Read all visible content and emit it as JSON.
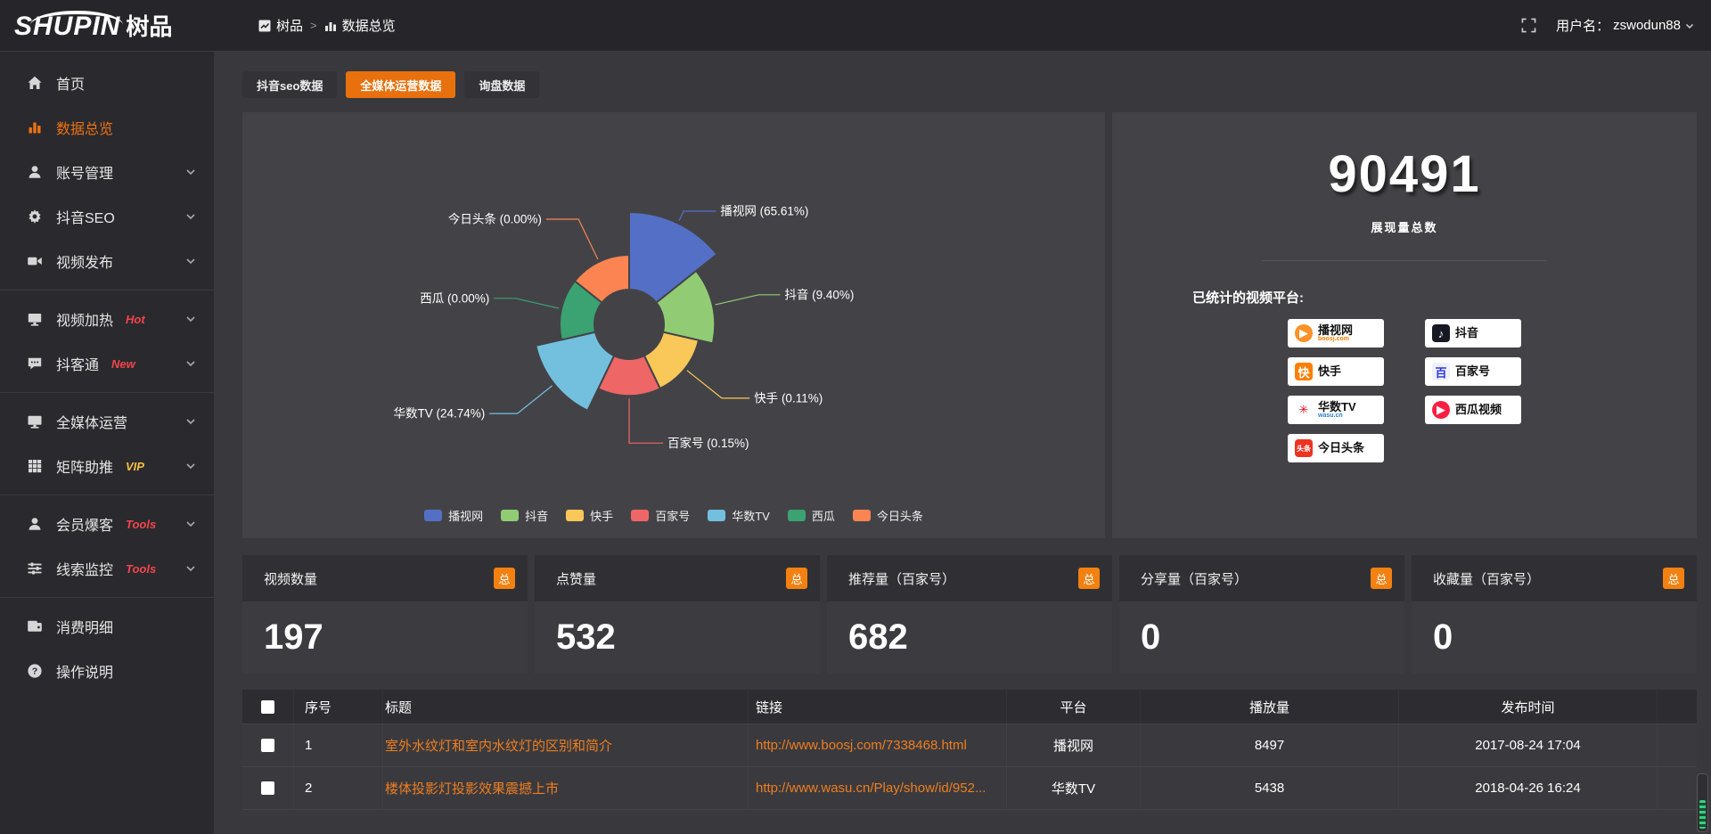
{
  "colors": {
    "accent": "#e8710d",
    "badge_total_bg": "#f28111",
    "hot_badge": "#f4444b",
    "vip_badge": "#f6c043",
    "link_orange": "#ee7e20",
    "panel_bg": "#434347",
    "palette": [
      "#5470c6",
      "#91cc75",
      "#fac858",
      "#ee6666",
      "#73c0de",
      "#3ba272",
      "#fc8452"
    ]
  },
  "header": {
    "logo_main": "SHUPIN",
    "logo_sub": "树品",
    "breadcrumb": [
      {
        "label": "树品",
        "icon": "dashboard-icon"
      },
      {
        "label": "数据总览",
        "icon": "bars-icon"
      }
    ],
    "breadcrumb_separator": ">",
    "user_label": "用户名：",
    "username": "zswodun88"
  },
  "sidebar": {
    "items": [
      {
        "key": "home",
        "icon": "home",
        "label": "首页"
      },
      {
        "key": "data-overview",
        "icon": "chart",
        "label": "数据总览",
        "active": true
      },
      {
        "key": "account-manage",
        "icon": "user",
        "label": "账号管理",
        "chevron": true
      },
      {
        "key": "douyin-seo",
        "icon": "gear",
        "label": "抖音SEO",
        "chevron": true
      },
      {
        "key": "video-publish",
        "icon": "publish",
        "label": "视频发布",
        "chevron": true,
        "divider_after": true
      },
      {
        "key": "video-heat",
        "icon": "monitor",
        "label": "视频加热",
        "badge": "Hot",
        "badge_color": "#f4444b",
        "chevron": true
      },
      {
        "key": "douketong",
        "icon": "chat",
        "label": "抖客通",
        "badge": "New",
        "badge_color": "#f4444b",
        "chevron": true,
        "divider_after": true
      },
      {
        "key": "media-operation",
        "icon": "screen",
        "label": "全媒体运营",
        "chevron": true
      },
      {
        "key": "matrix-boost",
        "icon": "grid",
        "label": "矩阵助推",
        "badge": "VIP",
        "badge_color": "#f6c043",
        "chevron": true,
        "divider_after": true
      },
      {
        "key": "member-burst",
        "icon": "user",
        "label": "会员爆客",
        "badge": "Tools",
        "badge_color": "#f4444b",
        "chevron": true
      },
      {
        "key": "clue-monitor",
        "icon": "sliders",
        "label": "线索监控",
        "badge": "Tools",
        "badge_color": "#f4444b",
        "chevron": true,
        "divider_after": true
      },
      {
        "key": "consumption-detail",
        "icon": "wallet",
        "label": "消费明细"
      },
      {
        "key": "operation-guide",
        "icon": "help",
        "label": "操作说明"
      }
    ]
  },
  "tabs": [
    {
      "key": "douyin-seo-data",
      "label": "抖音seo数据",
      "active": false
    },
    {
      "key": "media-operation-data",
      "label": "全媒体运营数据",
      "active": true
    },
    {
      "key": "inquiry-data",
      "label": "询盘数据",
      "active": false
    }
  ],
  "chart_data": {
    "type": "pie",
    "subtype": "nightingale-rose",
    "legend_position": "bottom",
    "slices": [
      {
        "name": "播视网",
        "value": 65.61,
        "pct": "65.61%",
        "color": "#5470c6"
      },
      {
        "name": "抖音",
        "value": 9.4,
        "pct": "9.40%",
        "color": "#91cc75"
      },
      {
        "name": "快手",
        "value": 0.11,
        "pct": "0.11%",
        "color": "#fac858"
      },
      {
        "name": "百家号",
        "value": 0.15,
        "pct": "0.15%",
        "color": "#ee6666"
      },
      {
        "name": "华数TV",
        "value": 24.74,
        "pct": "24.74%",
        "color": "#73c0de"
      },
      {
        "name": "西瓜",
        "value": 0.0,
        "pct": "0.00%",
        "color": "#3ba272"
      },
      {
        "name": "今日头条",
        "value": 0.0,
        "pct": "0.00%",
        "color": "#fc8452"
      }
    ]
  },
  "summary": {
    "total": "90491",
    "caption": "展现量总数",
    "platforms_label": "已统计的视频平台:",
    "platforms_left": [
      {
        "key": "boosj",
        "name": "播视网",
        "sub": "boosj.com",
        "sub_color": "#f57c00",
        "chip_text": "▶",
        "chip_bg": "#ff9026",
        "chip_color": "#fff",
        "chip_shape": "circle"
      },
      {
        "key": "kuaishou",
        "name": "快手",
        "sub": "",
        "sub_color": "",
        "chip_text": "快",
        "chip_bg": "#ff7e00",
        "chip_color": "#fff",
        "chip_shape": "square"
      },
      {
        "key": "wasu",
        "name": "华数TV",
        "sub": "wasu.cn",
        "sub_color": "#2a7fc9",
        "chip_text": "✳",
        "chip_bg": "#ffffff",
        "chip_color": "#e60012",
        "chip_shape": "square"
      },
      {
        "key": "toutiao",
        "name": "今日头条",
        "sub": "",
        "sub_color": "",
        "chip_text": "头条",
        "chip_bg": "#ed3321",
        "chip_color": "#fff",
        "chip_shape": "square"
      }
    ],
    "platforms_right": [
      {
        "key": "douyin",
        "name": "抖音",
        "sub": "",
        "sub_color": "",
        "chip_text": "♪",
        "chip_bg": "#161823",
        "chip_color": "#fff",
        "chip_shape": "square"
      },
      {
        "key": "baijiahao",
        "name": "百家号",
        "sub": "",
        "sub_color": "",
        "chip_text": "百",
        "chip_bg": "#eef1ff",
        "chip_color": "#2932e1",
        "chip_shape": "square"
      },
      {
        "key": "xigua",
        "name": "西瓜视频",
        "sub": "",
        "sub_color": "",
        "chip_text": "▶",
        "chip_bg": "#fa1f41",
        "chip_color": "#fff",
        "chip_shape": "circle"
      }
    ]
  },
  "stat_cards": [
    {
      "title": "视频数量",
      "badge": "总",
      "value": "197"
    },
    {
      "title": "点赞量",
      "badge": "总",
      "value": "532"
    },
    {
      "title": "推荐量（百家号）",
      "badge": "总",
      "value": "682"
    },
    {
      "title": "分享量（百家号）",
      "badge": "总",
      "value": "0"
    },
    {
      "title": "收藏量（百家号）",
      "badge": "总",
      "value": "0"
    }
  ],
  "table": {
    "headers": [
      "序号",
      "标题",
      "链接",
      "平台",
      "播放量",
      "发布时间"
    ],
    "rows": [
      {
        "seq": "1",
        "title": "室外水纹灯和室内水纹灯的区别和简介",
        "link": "http://www.boosj.com/7338468.html",
        "platform": "播视网",
        "plays": "8497",
        "time": "2017-08-24 17:04"
      },
      {
        "seq": "2",
        "title": "楼体投影灯投影效果震撼上市",
        "link": "http://www.wasu.cn/Play/show/id/952...",
        "platform": "华数TV",
        "plays": "5438",
        "time": "2018-04-26 16:24"
      }
    ]
  }
}
